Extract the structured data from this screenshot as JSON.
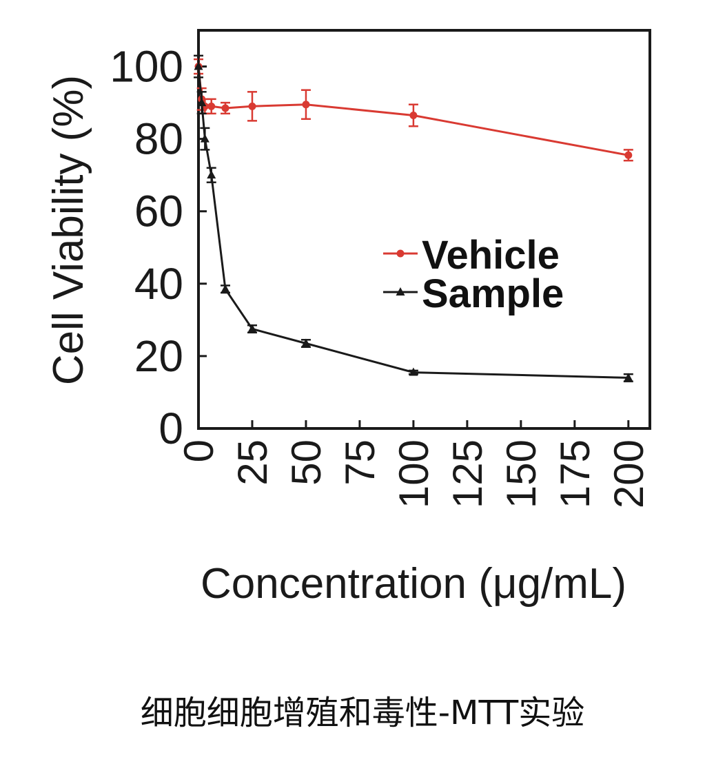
{
  "caption": "细胞细胞增殖和毒性-MTT实验",
  "chart_data": {
    "type": "line",
    "xlabel": "Concentration (μg/mL)",
    "ylabel": "Cell Viability (%)",
    "xlim": [
      0,
      210
    ],
    "ylim": [
      0,
      110
    ],
    "x_ticks": [
      0,
      25,
      50,
      75,
      100,
      125,
      150,
      175,
      200
    ],
    "y_ticks": [
      0,
      20,
      40,
      60,
      80,
      100
    ],
    "grid": false,
    "legend": {
      "position": "middle-right"
    },
    "series": [
      {
        "name": "Vehicle",
        "color": "#d93a32",
        "marker": "circle",
        "x": [
          0,
          1.5,
          3,
          6,
          12.5,
          25,
          50,
          100,
          200
        ],
        "y": [
          100,
          91,
          89,
          89,
          88.5,
          89,
          89.5,
          86.5,
          75.5
        ],
        "error": [
          2,
          3,
          2,
          2,
          1.5,
          4,
          4,
          3,
          1.5
        ]
      },
      {
        "name": "Sample",
        "color": "#1a1a1a",
        "marker": "triangle",
        "x": [
          0,
          1.5,
          3,
          6,
          12.5,
          25,
          50,
          100,
          200
        ],
        "y": [
          100,
          90,
          80,
          70,
          38.5,
          27.5,
          23.5,
          15.5,
          14
        ],
        "error": [
          3,
          3,
          3,
          2,
          1,
          1,
          1,
          0.5,
          1
        ]
      }
    ]
  }
}
